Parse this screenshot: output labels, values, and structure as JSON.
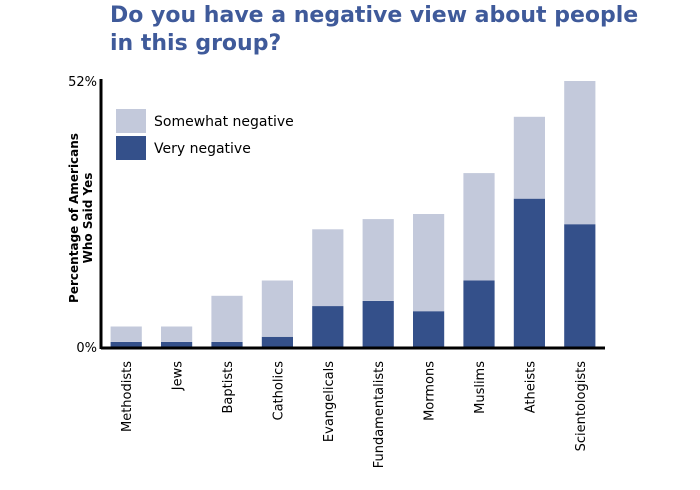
{
  "chart_data": {
    "type": "bar",
    "stacked": true,
    "title_lines": [
      "Do you have a negative view about people",
      "in this group?"
    ],
    "ylabel_lines": [
      "Percentage of Americans",
      "Who Said Yes"
    ],
    "xlabel": "",
    "categories": [
      "Methodists",
      "Jews",
      "Baptists",
      "Catholics",
      "Evangelicals",
      "Fundamentalists",
      "Mormons",
      "Muslims",
      "Atheists",
      "Scientologists"
    ],
    "series": [
      {
        "name": "Very negative",
        "color": "#34508a",
        "values": [
          1,
          1,
          1,
          2,
          8,
          9,
          7,
          13,
          29,
          24
        ]
      },
      {
        "name": "Somewhat negative",
        "color": "#c3c9db",
        "values": [
          3,
          3,
          9,
          11,
          15,
          16,
          19,
          21,
          16,
          28
        ]
      }
    ],
    "ylim": [
      0,
      52
    ],
    "yticks": [
      {
        "value": 0,
        "label": "0%"
      },
      {
        "value": 52,
        "label": "52%"
      }
    ],
    "legend": {
      "placement": "top-left",
      "order": [
        "Somewhat negative",
        "Very negative"
      ]
    },
    "grid": false
  }
}
